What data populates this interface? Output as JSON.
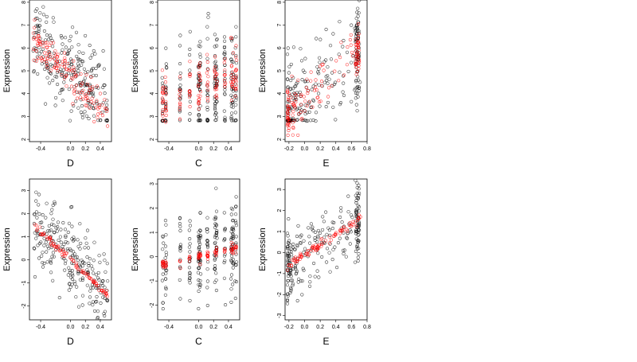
{
  "figure": {
    "background": "#ffffff",
    "colors": {
      "observed": "#000000",
      "fitted": "#ff0000"
    }
  },
  "chart_data": [
    {
      "type": "scatter",
      "xlabel": "D",
      "ylabel": "Expression",
      "xlim": [
        -0.55,
        0.55
      ],
      "ylim": [
        1.9,
        8.1
      ],
      "xticks": [
        -0.4,
        0.0,
        0.2,
        0.4
      ],
      "yticks": [
        2,
        3,
        4,
        5,
        6,
        7,
        8
      ],
      "series": [
        {
          "color": "#000000",
          "gen": {
            "mode": "band",
            "n": 240,
            "xmin": -0.5,
            "xmax": 0.5,
            "a": 5.0,
            "b": -3.2,
            "sd": 1.0,
            "floor": 2.8,
            "seed": 11
          }
        },
        {
          "color": "#ff0000",
          "gen": {
            "mode": "band",
            "n": 140,
            "xmin": -0.5,
            "xmax": 0.5,
            "a": 4.7,
            "b": -3.5,
            "sd": 0.45,
            "floor": 0,
            "seed": 12
          }
        }
      ]
    },
    {
      "type": "scatter",
      "xlabel": "C",
      "ylabel": "Expression",
      "xlim": [
        -0.55,
        0.55
      ],
      "ylim": [
        1.9,
        8.1
      ],
      "xticks": [
        -0.4,
        0.0,
        0.2,
        0.4
      ],
      "yticks": [
        2,
        3,
        4,
        5,
        6,
        7,
        8
      ],
      "series": [
        {
          "color": "#000000",
          "gen": {
            "mode": "columns",
            "n": 240,
            "xmin": -0.5,
            "xmax": 0.5,
            "a": 4.3,
            "b": 0.6,
            "sd": 1.2,
            "floor": 2.8,
            "seed": 21
          }
        },
        {
          "color": "#ff0000",
          "gen": {
            "mode": "columns",
            "n": 140,
            "xmin": -0.5,
            "xmax": 0.5,
            "a": 4.3,
            "b": 1.2,
            "sd": 0.6,
            "floor": 0,
            "seed": 22
          }
        }
      ]
    },
    {
      "type": "scatter",
      "xlabel": "E",
      "ylabel": "Expression",
      "xlim": [
        -0.25,
        0.8
      ],
      "ylim": [
        1.9,
        8.1
      ],
      "xticks": [
        -0.2,
        0.0,
        0.2,
        0.4,
        0.6,
        0.8
      ],
      "yticks": [
        2,
        3,
        4,
        5,
        6,
        7,
        8
      ],
      "series": [
        {
          "color": "#000000",
          "gen": {
            "mode": "skew",
            "n": 240,
            "xmin": -0.22,
            "xmax": 0.72,
            "a": 3.9,
            "b": 2.6,
            "sd": 1.1,
            "floor": 2.8,
            "seed": 31
          }
        },
        {
          "color": "#ff0000",
          "gen": {
            "mode": "skew",
            "n": 140,
            "xmin": -0.22,
            "xmax": 0.72,
            "a": 3.8,
            "b": 2.9,
            "sd": 0.55,
            "floor": 0,
            "seed": 32
          }
        }
      ]
    },
    {
      "type": "scatter",
      "xlabel": "D",
      "ylabel": "Expression",
      "xlim": [
        -0.55,
        0.55
      ],
      "ylim": [
        -2.6,
        3.5
      ],
      "xticks": [
        -0.4,
        0.0,
        0.2,
        0.4
      ],
      "yticks": [
        -2,
        -1,
        0,
        1,
        2,
        3
      ],
      "series": [
        {
          "color": "#000000",
          "gen": {
            "mode": "band",
            "n": 240,
            "xmin": -0.5,
            "xmax": 0.5,
            "a": 0.0,
            "b": -3.2,
            "sd": 0.9,
            "floor": -99,
            "seed": 41
          }
        },
        {
          "color": "#ff0000",
          "gen": {
            "mode": "line",
            "n": 90,
            "xmin": -0.5,
            "xmax": 0.5,
            "a": 0.0,
            "b": -3.1,
            "sd": 0.08,
            "floor": -99,
            "seed": 42
          }
        }
      ]
    },
    {
      "type": "scatter",
      "xlabel": "C",
      "ylabel": "Expression",
      "xlim": [
        -0.55,
        0.55
      ],
      "ylim": [
        -2.6,
        3.2
      ],
      "xticks": [
        -0.4,
        0.0,
        0.2,
        0.4
      ],
      "yticks": [
        -2,
        -1,
        0,
        1,
        2,
        3
      ],
      "series": [
        {
          "color": "#000000",
          "gen": {
            "mode": "columns",
            "n": 240,
            "xmin": -0.5,
            "xmax": 0.5,
            "a": 0.0,
            "b": 0.7,
            "sd": 0.9,
            "floor": -99,
            "seed": 51
          }
        },
        {
          "color": "#ff0000",
          "gen": {
            "mode": "columns",
            "n": 90,
            "xmin": -0.5,
            "xmax": 0.5,
            "a": 0.0,
            "b": 0.7,
            "sd": 0.1,
            "floor": -99,
            "seed": 52
          }
        }
      ]
    },
    {
      "type": "scatter",
      "xlabel": "E",
      "ylabel": "Expression",
      "xlim": [
        -0.25,
        0.8
      ],
      "ylim": [
        -3.2,
        3.5
      ],
      "xticks": [
        -0.2,
        0.0,
        0.2,
        0.4,
        0.6,
        0.8
      ],
      "yticks": [
        -3,
        -2,
        -1,
        0,
        1,
        2,
        3
      ],
      "series": [
        {
          "color": "#000000",
          "gen": {
            "mode": "skew",
            "n": 240,
            "xmin": -0.22,
            "xmax": 0.72,
            "a": -0.2,
            "b": 2.6,
            "sd": 0.9,
            "floor": -99,
            "seed": 61
          }
        },
        {
          "color": "#ff0000",
          "gen": {
            "mode": "line",
            "n": 90,
            "xmin": -0.22,
            "xmax": 0.72,
            "a": -0.1,
            "b": 2.4,
            "sd": 0.1,
            "floor": -99,
            "seed": 62
          }
        }
      ]
    }
  ]
}
